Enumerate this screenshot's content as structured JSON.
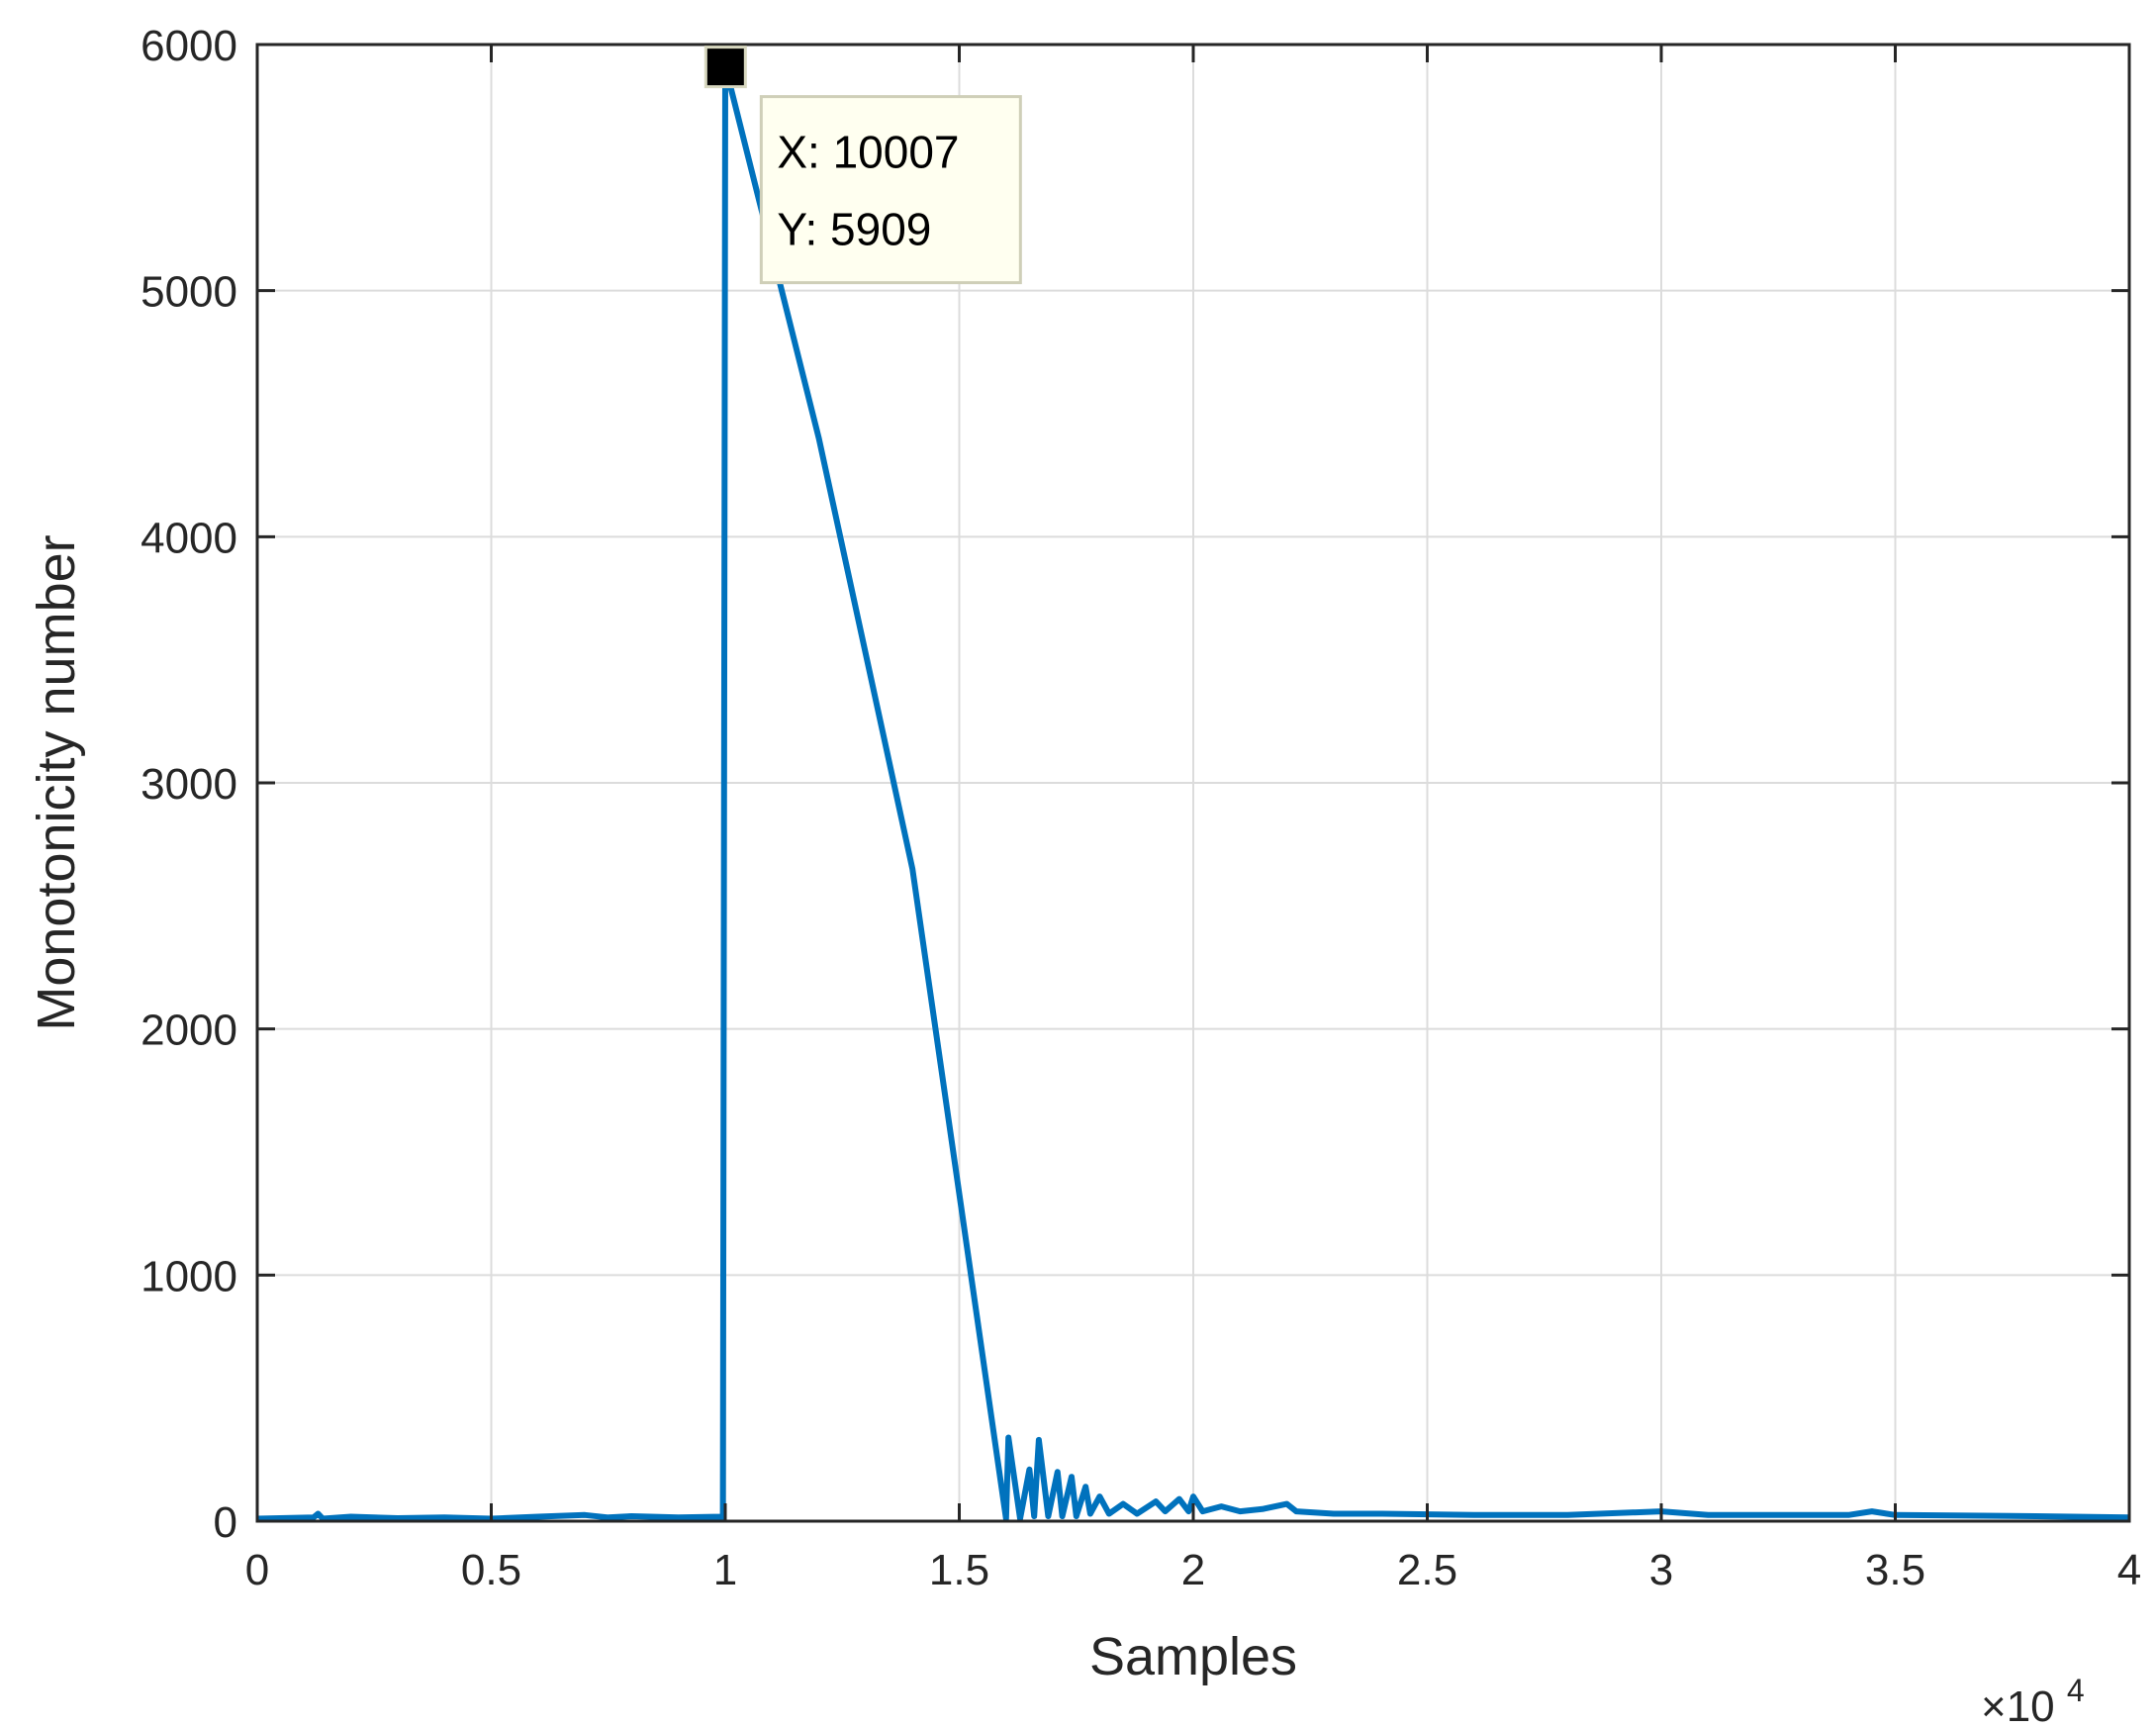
{
  "chart_data": {
    "type": "line",
    "xlabel": "Samples",
    "ylabel": "Monotonicity number",
    "xlim": [
      0,
      40000
    ],
    "ylim": [
      0,
      6000
    ],
    "x_ticks": [
      0,
      5000,
      10000,
      15000,
      20000,
      25000,
      30000,
      35000,
      40000
    ],
    "x_tick_labels": [
      "0",
      "0.5",
      "1",
      "1.5",
      "2",
      "2.5",
      "3",
      "3.5",
      "4"
    ],
    "x_exponent_label": "×10",
    "x_exponent_power": "4",
    "y_ticks": [
      0,
      1000,
      2000,
      3000,
      4000,
      5000,
      6000
    ],
    "y_tick_labels": [
      "0",
      "1000",
      "2000",
      "3000",
      "4000",
      "5000",
      "6000"
    ],
    "grid": true,
    "line_color": "#0072BD",
    "series": [
      {
        "points": [
          [
            0,
            10
          ],
          [
            1200,
            15
          ],
          [
            1300,
            30
          ],
          [
            1400,
            10
          ],
          [
            2000,
            18
          ],
          [
            3000,
            12
          ],
          [
            4000,
            15
          ],
          [
            5000,
            10
          ],
          [
            6000,
            18
          ],
          [
            7000,
            25
          ],
          [
            7500,
            15
          ],
          [
            8000,
            20
          ],
          [
            9000,
            15
          ],
          [
            9900,
            18
          ],
          [
            9950,
            10
          ],
          [
            10000,
            5909
          ],
          [
            10007,
            5909
          ],
          [
            12000,
            4400
          ],
          [
            14000,
            2650
          ],
          [
            16000,
            10
          ],
          [
            16050,
            340
          ],
          [
            16300,
            10
          ],
          [
            16500,
            210
          ],
          [
            16600,
            20
          ],
          [
            16700,
            330
          ],
          [
            16900,
            20
          ],
          [
            17100,
            200
          ],
          [
            17200,
            20
          ],
          [
            17400,
            180
          ],
          [
            17500,
            20
          ],
          [
            17700,
            140
          ],
          [
            17800,
            30
          ],
          [
            18000,
            100
          ],
          [
            18200,
            30
          ],
          [
            18500,
            70
          ],
          [
            18800,
            30
          ],
          [
            19200,
            80
          ],
          [
            19400,
            40
          ],
          [
            19700,
            90
          ],
          [
            19900,
            40
          ],
          [
            20000,
            100
          ],
          [
            20200,
            40
          ],
          [
            20600,
            60
          ],
          [
            21000,
            40
          ],
          [
            21500,
            50
          ],
          [
            22000,
            70
          ],
          [
            22200,
            40
          ],
          [
            23000,
            30
          ],
          [
            24000,
            30
          ],
          [
            26000,
            25
          ],
          [
            28000,
            25
          ],
          [
            30000,
            40
          ],
          [
            31000,
            25
          ],
          [
            34000,
            25
          ],
          [
            34500,
            40
          ],
          [
            35000,
            25
          ],
          [
            38000,
            20
          ],
          [
            40000,
            15
          ]
        ]
      }
    ],
    "datatip": {
      "x": 10007,
      "y": 5909,
      "x_text": "X: 10007",
      "y_text": "Y: 5909"
    }
  }
}
